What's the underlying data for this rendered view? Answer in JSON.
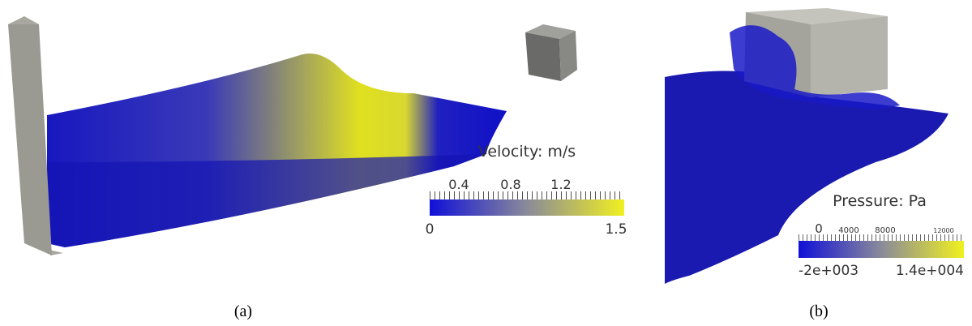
{
  "panels": [
    {
      "caption": "(a)",
      "colorbar": {
        "title": "Velocity: m/s",
        "ticks": [
          "0.4",
          "0.8",
          "1.2"
        ],
        "min_label": "0",
        "max_label": "1.5"
      }
    },
    {
      "caption": "(b)",
      "colorbar": {
        "title": "Pressure: Pa",
        "ticks": [
          "0",
          "4000",
          "8000",
          "12000"
        ],
        "min_label": "-2e+003",
        "max_label": "1.4e+004"
      }
    }
  ]
}
